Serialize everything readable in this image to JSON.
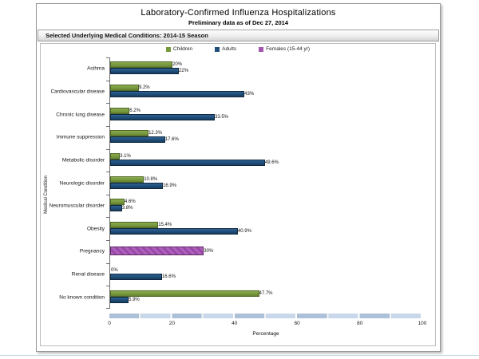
{
  "window": {
    "title": "Laboratory-Confirmed Influenza Hospitalizations",
    "subtitle": "Preliminary data as of Dec 27, 2014",
    "panel_header": "Selected Underlying Medical Conditions: 2014-15 Season"
  },
  "colors": {
    "children": "#77993D",
    "adults": "#1F4E79",
    "females": "#A355B0",
    "scroll_band": "#B5CBE3"
  },
  "chart_data": {
    "type": "bar",
    "orientation": "horizontal",
    "title": "Laboratory-Confirmed Influenza Hospitalizations",
    "subtitle": "Preliminary data as of Dec 27, 2014",
    "categories": [
      "Asthma",
      "Cardiovascular disease",
      "Chronic lung disease",
      "Immune suppression",
      "Metabolic disorder",
      "Neurologic disorder",
      "Neuromuscular disorder",
      "Obesity",
      "Pregnancy",
      "Renal disease",
      "No known condition"
    ],
    "series": [
      {
        "name": "Children",
        "color": "#77993D",
        "values": [
          20,
          9.2,
          6.2,
          12.3,
          3.1,
          10.8,
          4.6,
          15.4,
          null,
          0,
          47.7
        ],
        "labels": [
          "20%",
          "9.2%",
          "6.2%",
          "12.3%",
          "3.1%",
          "10.8%",
          "4.6%",
          "15.4%",
          "",
          "0%",
          "47.7%"
        ]
      },
      {
        "name": "Adults",
        "color": "#1F4E79",
        "values": [
          22,
          43,
          33.5,
          17.6,
          49.6,
          16.9,
          3.8,
          40.9,
          null,
          16.6,
          5.9
        ],
        "labels": [
          "22%",
          "43%",
          "33.5%",
          "17.6%",
          "49.6%",
          "16.9%",
          "3.8%",
          "40.9%",
          "",
          "16.6%",
          "5.9%"
        ]
      },
      {
        "name": "Females (15-44 yr)",
        "color": "#A355B0",
        "values": [
          null,
          null,
          null,
          null,
          null,
          null,
          null,
          null,
          30,
          null,
          null
        ],
        "labels": [
          "",
          "",
          "",
          "",
          "",
          "",
          "",
          "",
          "30%",
          "",
          ""
        ]
      }
    ],
    "xlabel": "Percentage",
    "ylabel": "Medical Condition",
    "xlim": [
      0,
      100
    ],
    "xticks": [
      "0",
      "20",
      "40",
      "60",
      "80",
      "100"
    ],
    "legend_position": "top",
    "grid": false
  }
}
